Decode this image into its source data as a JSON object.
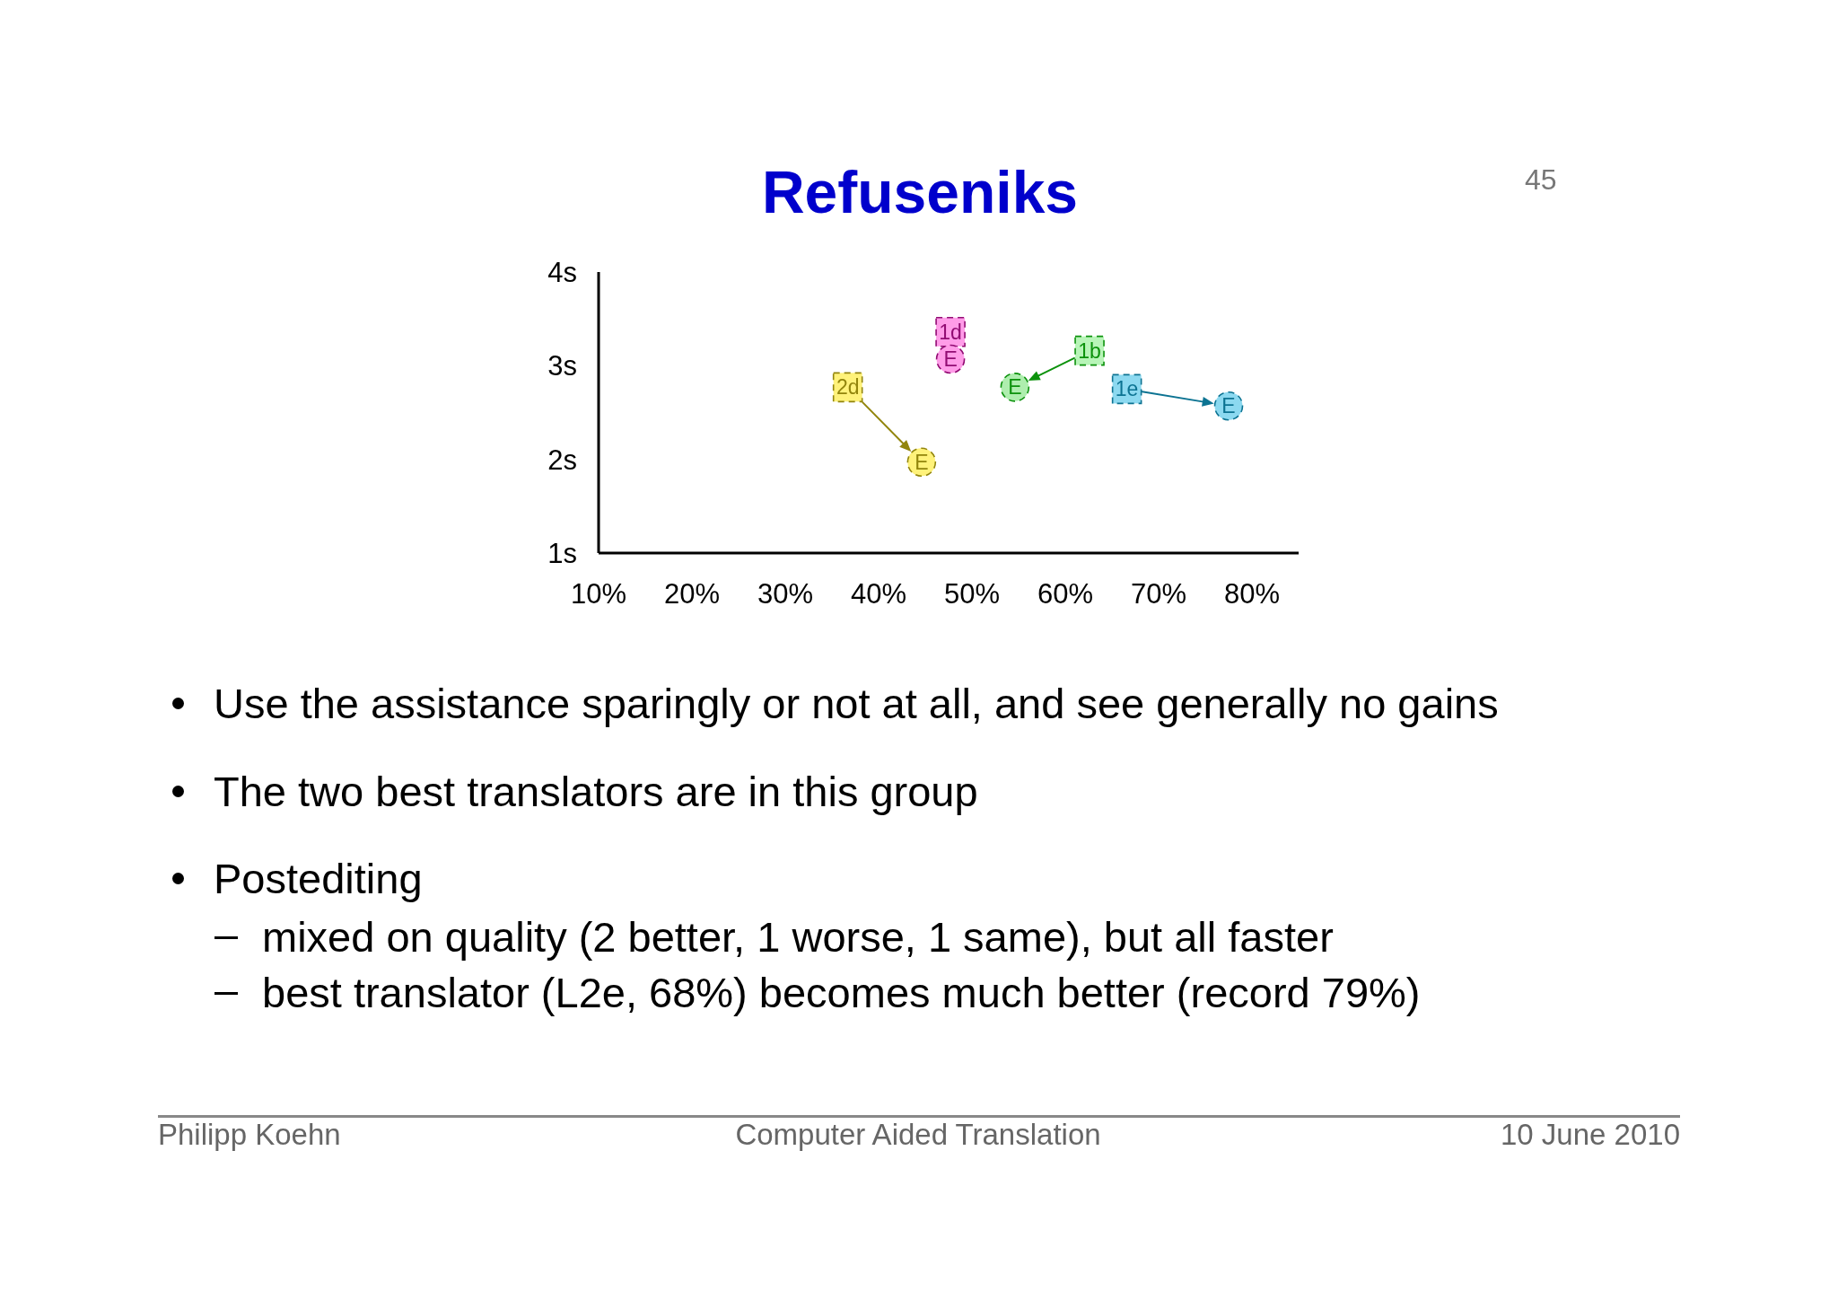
{
  "chart_data": {
    "type": "scatter",
    "title": "Refuseniks",
    "series": [
      {
        "marker": "square",
        "x": [
          47.7,
          36.7,
          62.6,
          66.6
        ],
        "values": [
          3.36,
          2.77,
          3.16,
          2.75
        ],
        "colors": [
          "#ff9ce8",
          "#fff27a",
          "#b8f5b8",
          "#8cd9f0"
        ]
      },
      {
        "marker": "circle",
        "x": [
          47.7,
          44.6,
          54.6,
          77.5
        ],
        "values": [
          3.07,
          1.97,
          2.77,
          2.57
        ],
        "colors": [
          "#ff9ce8",
          "#fff27a",
          "#aeeeae",
          "#8cd9f0"
        ]
      }
    ],
    "xlim": [
      10,
      85
    ],
    "xticks": [
      {
        "value": 10,
        "label": "10%"
      },
      {
        "value": 20,
        "label": "20%"
      },
      {
        "value": 30,
        "label": "30%"
      },
      {
        "value": 40,
        "label": "40%"
      },
      {
        "value": 50,
        "label": "50%"
      },
      {
        "value": 60,
        "label": "60%"
      },
      {
        "value": 70,
        "label": "70%"
      },
      {
        "value": 80,
        "label": "80%"
      }
    ],
    "ylim": [
      1,
      4
    ],
    "yticks": [
      {
        "value": 1,
        "label": "1s"
      },
      {
        "value": 2,
        "label": "2s"
      },
      {
        "value": 3,
        "label": "3s"
      },
      {
        "value": 4,
        "label": "4s"
      }
    ],
    "annotations": [
      "Use the assistance sparingly or not at all, and see generally no gains",
      "The two best translators are in this group",
      "Postediting",
      "mixed on quality (2 better, 1 worse, 1 same), but all faster",
      "best translator (L2e, 68%) becomes much better (record 79%)",
      "45",
      "Philipp Koehn",
      "Computer Aided Translation",
      "10 June 2010",
      {
        "text": "1d",
        "x": 47.7,
        "y": 3.36
      },
      {
        "text": "2d",
        "x": 36.7,
        "y": 2.77
      },
      {
        "text": "1b",
        "x": 62.6,
        "y": 3.16
      },
      {
        "text": "1e",
        "x": 66.6,
        "y": 2.75
      },
      {
        "text": "E",
        "x": 47.7,
        "y": 3.07
      },
      {
        "text": "E",
        "x": 44.6,
        "y": 1.97
      },
      {
        "text": "E",
        "x": 54.6,
        "y": 2.77
      },
      {
        "text": "E",
        "x": 77.5,
        "y": 2.57
      }
    ]
  }
}
